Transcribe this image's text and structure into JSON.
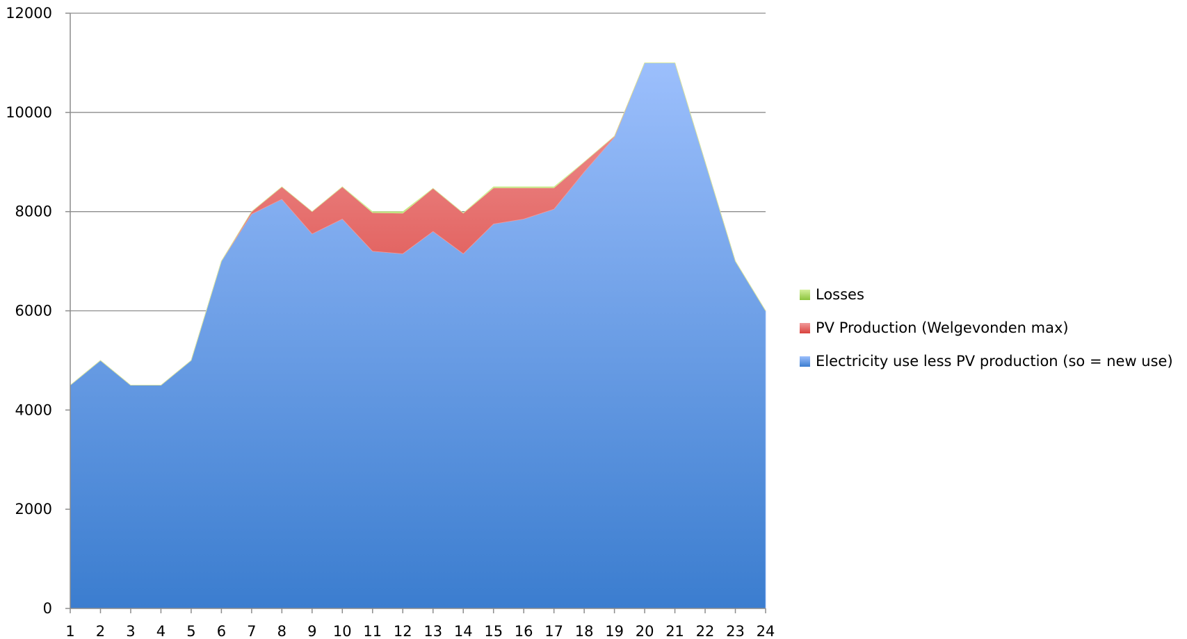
{
  "chart_data": {
    "type": "area",
    "stacked": true,
    "x": [
      1,
      2,
      3,
      4,
      5,
      6,
      7,
      8,
      9,
      10,
      11,
      12,
      13,
      14,
      15,
      16,
      17,
      18,
      19,
      20,
      21,
      22,
      23,
      24
    ],
    "ylim": [
      0,
      12000
    ],
    "yticks": [
      0,
      2000,
      4000,
      6000,
      8000,
      10000,
      12000
    ],
    "grid": true,
    "legend_position": "right",
    "series": [
      {
        "name": "Electricity use less PV production (so = new use)",
        "color_top": "#9cbffc",
        "color_bottom": "#3b7dcf",
        "values": [
          4500,
          5000,
          4500,
          4500,
          5000,
          7000,
          7950,
          8250,
          7550,
          7850,
          7200,
          7150,
          7600,
          7150,
          7750,
          7850,
          8050,
          8800,
          9500,
          11000,
          11000,
          9000,
          7000,
          6000
        ]
      },
      {
        "name": "PV Production (Welgevonden max)",
        "color_top": "#f19a9a",
        "color_bottom": "#d9413d",
        "values": [
          0,
          0,
          0,
          0,
          0,
          0,
          50,
          250,
          450,
          650,
          780,
          820,
          870,
          820,
          730,
          630,
          430,
          200,
          20,
          0,
          0,
          0,
          0,
          0
        ]
      },
      {
        "name": "Losses",
        "color_top": "#d4f09a",
        "color_bottom": "#8cc43c",
        "values": [
          0,
          0,
          0,
          0,
          0,
          0,
          0,
          0,
          0,
          0,
          20,
          30,
          0,
          0,
          20,
          20,
          20,
          0,
          0,
          0,
          0,
          0,
          0,
          0
        ]
      }
    ]
  },
  "legend": {
    "items": [
      {
        "label": "Losses",
        "color_top": "#d4f09a",
        "color_bottom": "#8cc43c"
      },
      {
        "label": "PV Production (Welgevonden max)",
        "color_top": "#f19a9a",
        "color_bottom": "#d9413d"
      },
      {
        "label": "Electricity use less PV production (so = new use)",
        "color_top": "#9cbffc",
        "color_bottom": "#3b7dcf"
      }
    ]
  }
}
